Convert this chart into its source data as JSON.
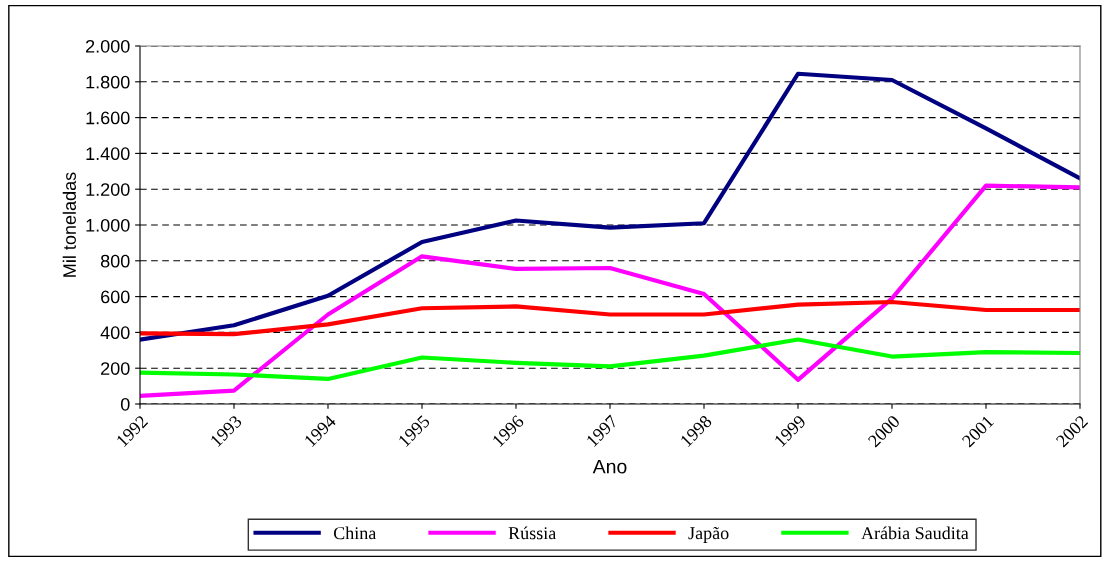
{
  "chart_data": {
    "type": "line",
    "xlabel": "Ano",
    "ylabel": "Mil toneladas",
    "categories": [
      "1992",
      "1993",
      "1994",
      "1995",
      "1996",
      "1997",
      "1998",
      "1999",
      "2000",
      "2001",
      "2002"
    ],
    "series": [
      {
        "name": "China",
        "color": "#000080",
        "values": [
          360,
          440,
          605,
          905,
          1025,
          985,
          1010,
          1845,
          1810,
          1540,
          1260
        ]
      },
      {
        "name": "Rússia",
        "color": "#ff00ff",
        "values": [
          45,
          75,
          500,
          825,
          755,
          760,
          615,
          135,
          590,
          1220,
          1210
        ]
      },
      {
        "name": "Japão",
        "color": "#ff0000",
        "values": [
          395,
          390,
          445,
          535,
          545,
          500,
          500,
          555,
          570,
          525,
          525
        ]
      },
      {
        "name": "Arábia Saudita",
        "color": "#00ff00",
        "values": [
          175,
          165,
          140,
          260,
          230,
          210,
          270,
          360,
          265,
          290,
          285
        ]
      }
    ],
    "ylim": [
      0,
      2000
    ],
    "yticks": [
      0,
      200,
      400,
      600,
      800,
      {
        "value": 1000,
        "label": "1.000"
      },
      {
        "value": 1200,
        "label": "1.200"
      },
      {
        "value": 1400,
        "label": "1.400"
      },
      {
        "value": 1600,
        "label": "1.600"
      },
      {
        "value": 1800,
        "label": "1.800"
      },
      {
        "value": 2000,
        "label": "2.000"
      }
    ],
    "grid": "y",
    "legend": "bottom",
    "marker": "none",
    "line_style": "solid"
  }
}
